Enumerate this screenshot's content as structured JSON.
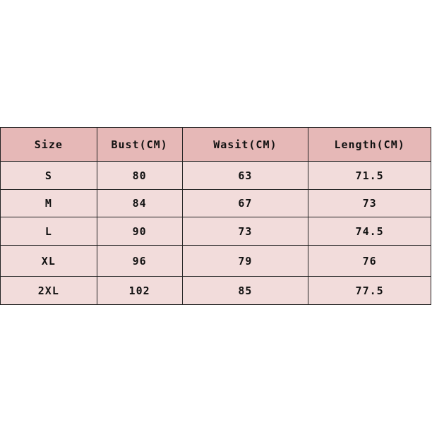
{
  "table": {
    "headers": [
      "Size",
      "Bust(CM)",
      "Wasit(CM)",
      "Length(CM)"
    ],
    "rows": [
      [
        "S",
        "80",
        "63",
        "71.5"
      ],
      [
        "M",
        "84",
        "67",
        "73"
      ],
      [
        "L",
        "90",
        "73",
        "74.5"
      ],
      [
        "XL",
        "96",
        "79",
        "76"
      ],
      [
        "2XL",
        "102",
        "85",
        "77.5"
      ]
    ]
  },
  "colors": {
    "header_bg": "#e6b8b7",
    "cell_bg": "#f2dcdb",
    "border": "#222222"
  }
}
